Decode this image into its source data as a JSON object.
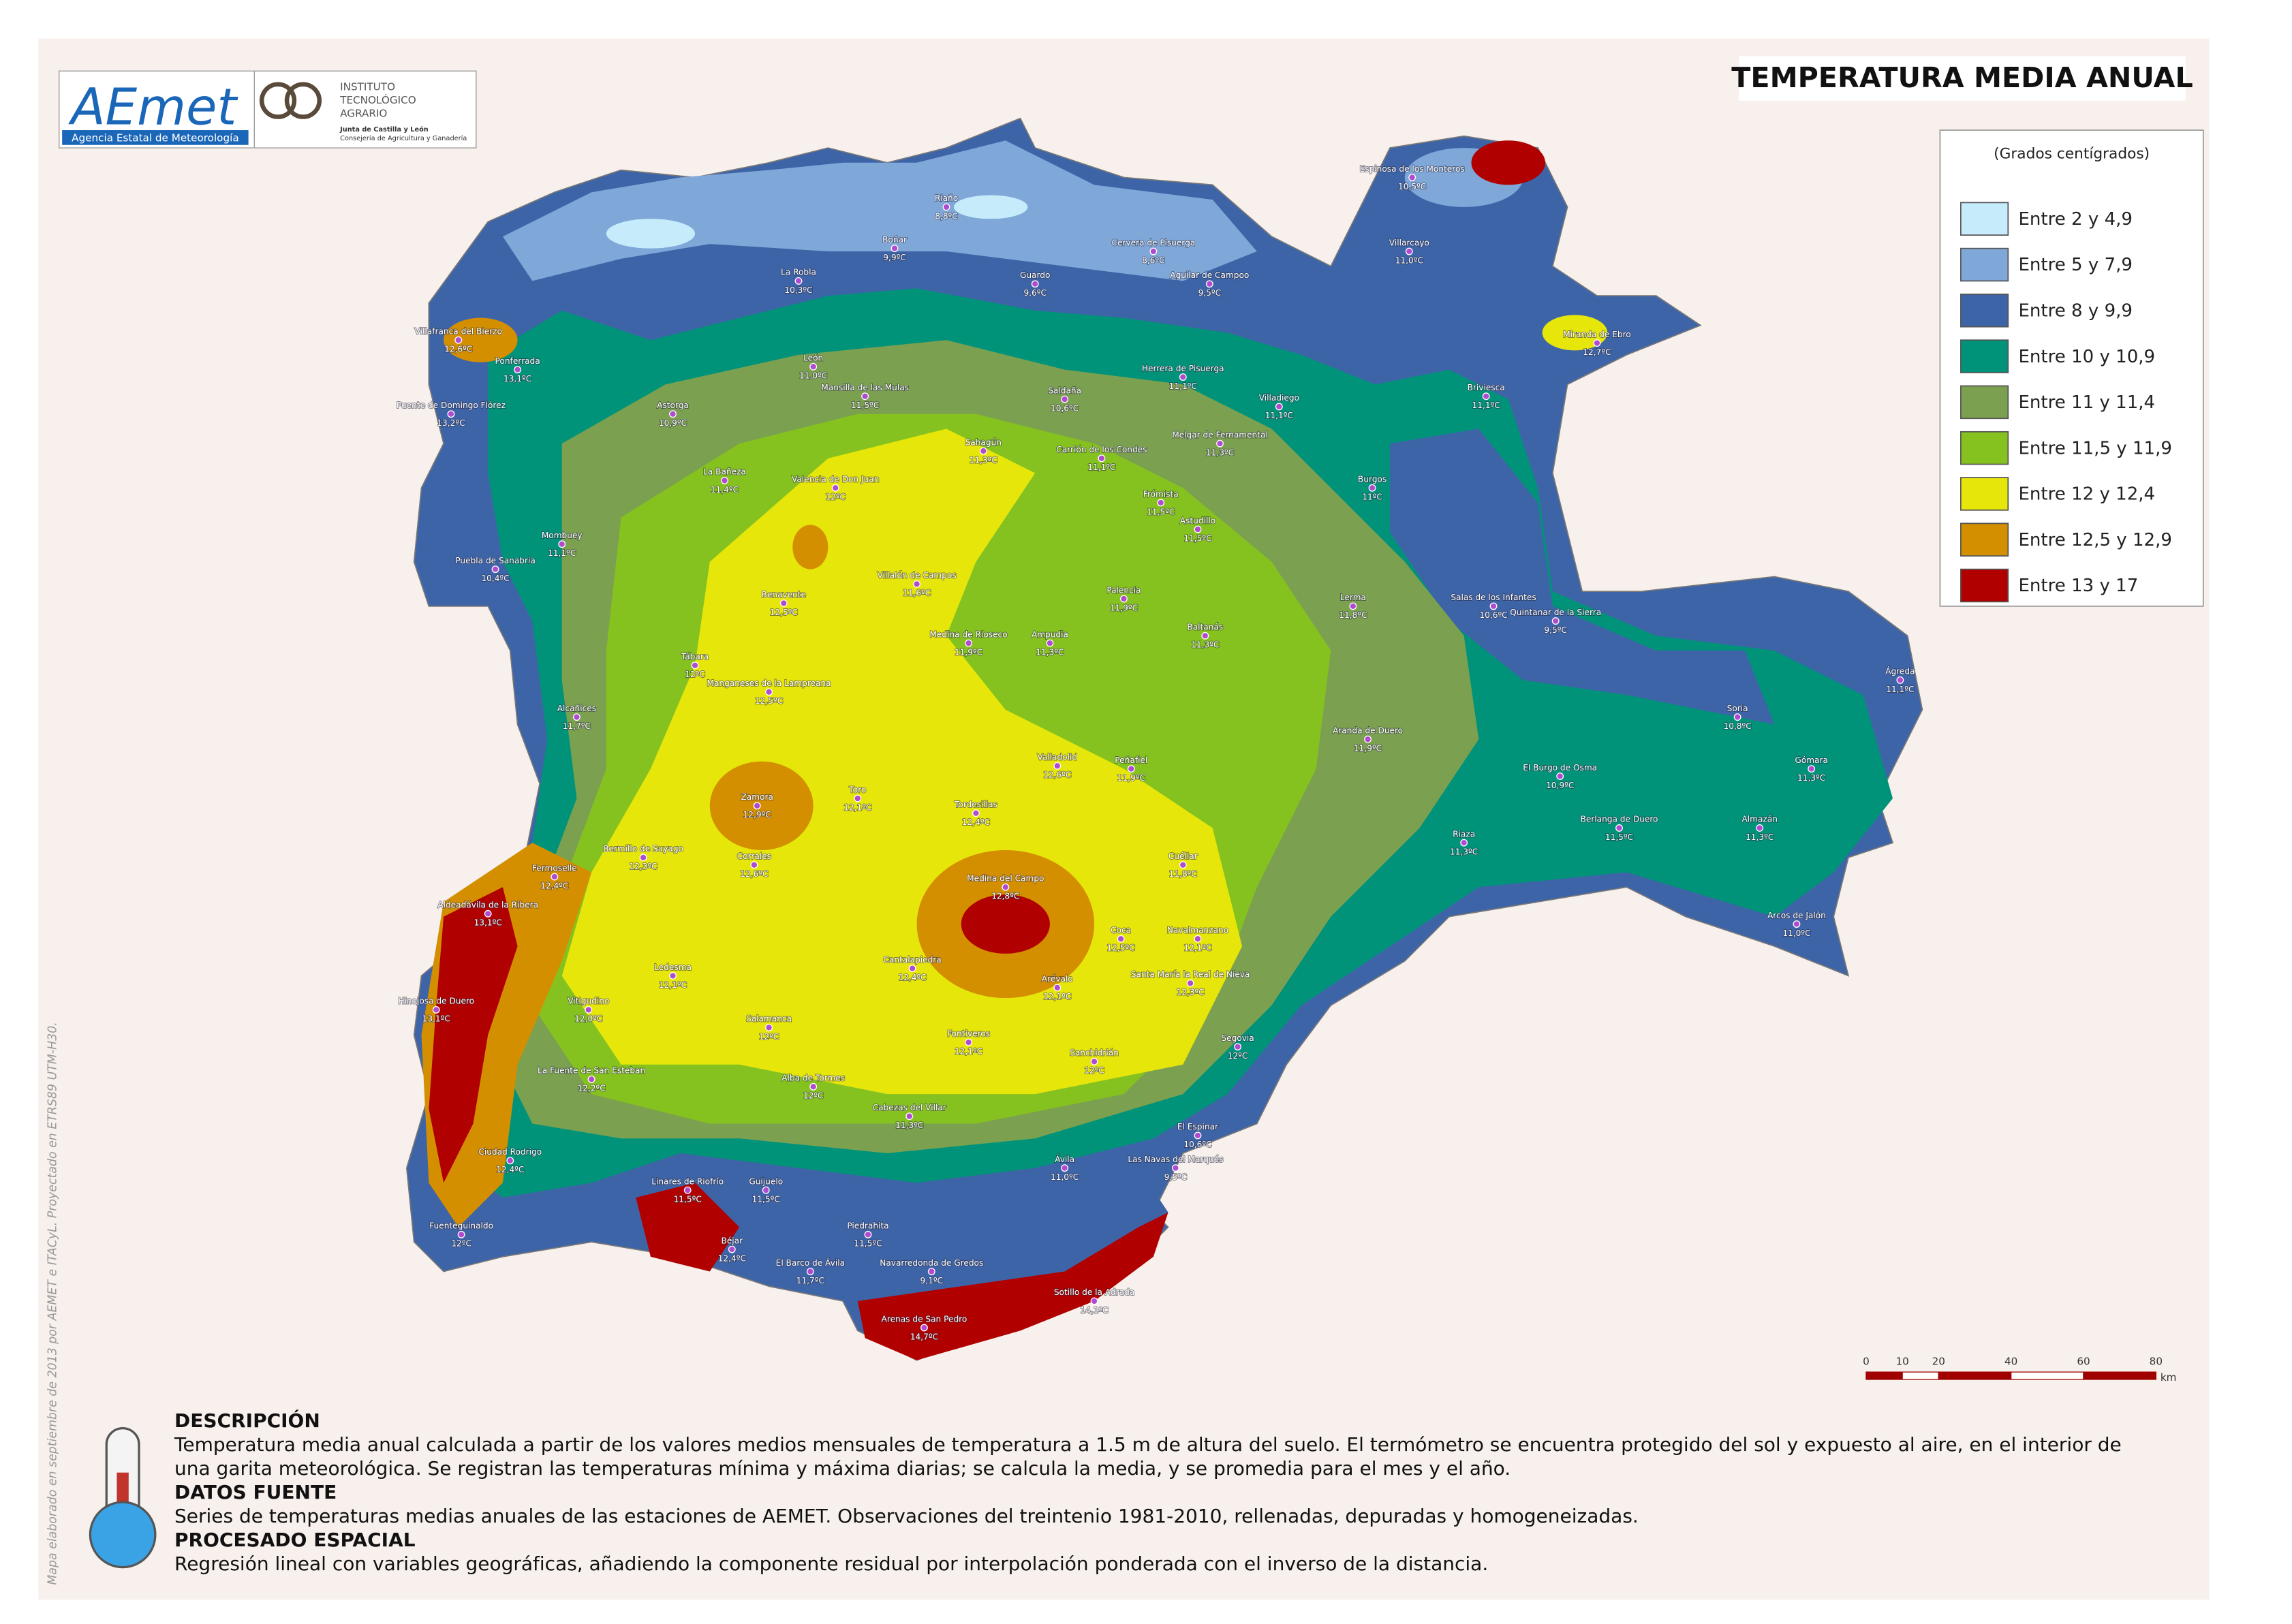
{
  "header": {
    "title": "TEMPERATURA MEDIA ANUAL",
    "logo_aemet": "AEmet",
    "logo_aemet_caption": "Agencia Estatal de Meteorología",
    "logo_itacyl_lines": [
      "INSTITUTO",
      "TECNOLÓGICO",
      "AGRARIO"
    ],
    "logo_itacyl_caption": "Junta de Castilla y León",
    "logo_itacyl_caption2": "Consejería de Agricultura y Ganadería"
  },
  "legend": {
    "title": "(Grados centígrados)",
    "items": [
      {
        "label": "Entre 2 y 4,9",
        "color": "#c6ecfb"
      },
      {
        "label": "Entre 5 y 7,9",
        "color": "#7fa7d8"
      },
      {
        "label": "Entre 8 y 9,9",
        "color": "#3e64a8"
      },
      {
        "label": "Entre 10 y 10,9",
        "color": "#00937a"
      },
      {
        "label": "Entre 11 y 11,4",
        "color": "#7ba050"
      },
      {
        "label": "Entre 11,5 y 11,9",
        "color": "#86c21f"
      },
      {
        "label": "Entre 12 y 12,4",
        "color": "#e6e60a"
      },
      {
        "label": "Entre 12,5 y 12,9",
        "color": "#d38f00"
      },
      {
        "label": "Entre 13 y 17",
        "color": "#b00000"
      }
    ]
  },
  "stations": [
    {
      "name": "Riaño",
      "temp": "8,8ºC"
    },
    {
      "name": "Boñar",
      "temp": "9,9ºC"
    },
    {
      "name": "Cervera de Pisuerga",
      "temp": "8,6ºC"
    },
    {
      "name": "Guardo",
      "temp": "9,6ºC"
    },
    {
      "name": "Aguilar de Campoo",
      "temp": "9,5ºC"
    },
    {
      "name": "La Robla",
      "temp": "10,3ºC"
    },
    {
      "name": "Villafranca del Bierzo",
      "temp": "12,6ºC"
    },
    {
      "name": "Ponferrada",
      "temp": "13,1ºC"
    },
    {
      "name": "Puente de Domingo Flórez",
      "temp": "13,2ºC"
    },
    {
      "name": "León",
      "temp": "11,0ºC"
    },
    {
      "name": "Mansilla de las Mulas",
      "temp": "11,5ºC"
    },
    {
      "name": "Sahagún",
      "temp": "11,3ºC"
    },
    {
      "name": "Saldaña",
      "temp": "10,6ºC"
    },
    {
      "name": "Herrera de Pisuerga",
      "temp": "11,1ºC"
    },
    {
      "name": "Villadiego",
      "temp": "11,1ºC"
    },
    {
      "name": "Melgar de Fernamental",
      "temp": "11,3ºC"
    },
    {
      "name": "Astorga",
      "temp": "10,9ºC"
    },
    {
      "name": "La Bañeza",
      "temp": "11,4ºC"
    },
    {
      "name": "Valencia de Don Juan",
      "temp": "12ºC"
    },
    {
      "name": "Carrión de los Condes",
      "temp": "11,1ºC"
    },
    {
      "name": "Frómista",
      "temp": "11,5ºC"
    },
    {
      "name": "Burgos",
      "temp": "11ºC"
    },
    {
      "name": "Astudillo",
      "temp": "11,5ºC"
    },
    {
      "name": "Villalón de Campos",
      "temp": "11,6ºC"
    },
    {
      "name": "Benavente",
      "temp": "12,5ºC"
    },
    {
      "name": "Puebla de Sanabria",
      "temp": "10,4ºC"
    },
    {
      "name": "Mombuey",
      "temp": "11,1ºC"
    },
    {
      "name": "Palencia",
      "temp": "11,9ºC"
    },
    {
      "name": "Baltanás",
      "temp": "11,3ºC"
    },
    {
      "name": "Lerma",
      "temp": "11,8ºC"
    },
    {
      "name": "Salas de los Infantes",
      "temp": "10,6ºC"
    },
    {
      "name": "Quintanar de la Sierra",
      "temp": "9,5ºC"
    },
    {
      "name": "Tábara",
      "temp": "12ºC"
    },
    {
      "name": "Manganeses de la Lampreana",
      "temp": "12,5ºC"
    },
    {
      "name": "Alcañices",
      "temp": "11,7ºC"
    },
    {
      "name": "Medina de Rioseco",
      "temp": "11,9ºC"
    },
    {
      "name": "Ampudia",
      "temp": "11,3ºC"
    },
    {
      "name": "Aranda de Duero",
      "temp": "11,9ºC"
    },
    {
      "name": "Valladolid",
      "temp": "12,6ºC"
    },
    {
      "name": "Peñafiel",
      "temp": "11,9ºC"
    },
    {
      "name": "Zamora",
      "temp": "12,9ºC"
    },
    {
      "name": "Toro",
      "temp": "12,1ºC"
    },
    {
      "name": "Tordesillas",
      "temp": "12,4ºC"
    },
    {
      "name": "Bermillo de Sayago",
      "temp": "12,3ºC"
    },
    {
      "name": "Corrales",
      "temp": "12,6ºC"
    },
    {
      "name": "Fermoselle",
      "temp": "12,4ºC"
    },
    {
      "name": "Medina del Campo",
      "temp": "12,8ºC"
    },
    {
      "name": "Cuéllar",
      "temp": "11,8ºC"
    },
    {
      "name": "Riaza",
      "temp": "11,3ºC"
    },
    {
      "name": "Soria",
      "temp": "10,8ºC"
    },
    {
      "name": "Almazán",
      "temp": "11,3ºC"
    },
    {
      "name": "El Burgo de Osma",
      "temp": "10,9ºC"
    },
    {
      "name": "Ágreda",
      "temp": "11,1ºC"
    },
    {
      "name": "Gómara",
      "temp": "11,3ºC"
    },
    {
      "name": "Arcos de Jalón",
      "temp": "11,0ºC"
    },
    {
      "name": "Berlanga de Duero",
      "temp": "11,5ºC"
    },
    {
      "name": "Coca",
      "temp": "12,5ºC"
    },
    {
      "name": "Navalmanzano",
      "temp": "12,1ºC"
    },
    {
      "name": "Santa María la Real de Nieva",
      "temp": "12,3ºC"
    },
    {
      "name": "Arévalo",
      "temp": "12,1ºC"
    },
    {
      "name": "Cantalapiedra",
      "temp": "12,4ºC"
    },
    {
      "name": "Ledesma",
      "temp": "12,1ºC"
    },
    {
      "name": "Vitigudino",
      "temp": "12,0ºC"
    },
    {
      "name": "Aldeadávila de la Ribera",
      "temp": "13,1ºC"
    },
    {
      "name": "Hinojosa de Duero",
      "temp": "13,1ºC"
    },
    {
      "name": "Salamanca",
      "temp": "12ºC"
    },
    {
      "name": "Fontiveros",
      "temp": "12,1ºC"
    },
    {
      "name": "Segovia",
      "temp": "12ºC"
    },
    {
      "name": "Sanchidrián",
      "temp": "12ºC"
    },
    {
      "name": "La Fuente de San Esteban",
      "temp": "12,2ºC"
    },
    {
      "name": "Alba de Tormes",
      "temp": "12ºC"
    },
    {
      "name": "Cabezas del Villar",
      "temp": "11,3ºC"
    },
    {
      "name": "Ávila",
      "temp": "11,0ºC"
    },
    {
      "name": "Ciudad Rodrigo",
      "temp": "12,4ºC"
    },
    {
      "name": "Linares de Riofrío",
      "temp": "11,5ºC"
    },
    {
      "name": "Guijuelo",
      "temp": "11,5ºC"
    },
    {
      "name": "Piedrahita",
      "temp": "11,5ºC"
    },
    {
      "name": "Navarredonda de Gredos",
      "temp": "9,1ºC"
    },
    {
      "name": "El Barco de Ávila",
      "temp": "11,7ºC"
    },
    {
      "name": "Fuenteguinaldo",
      "temp": "12ºC"
    },
    {
      "name": "Béjar",
      "temp": "12,4ºC"
    },
    {
      "name": "Arenas de San Pedro",
      "temp": "14,7ºC"
    },
    {
      "name": "Sotillo de la Adrada",
      "temp": "14,1ºC"
    },
    {
      "name": "Las Navas del Marqués",
      "temp": "9,5ºC"
    },
    {
      "name": "El Espinar",
      "temp": "10,6ºC"
    },
    {
      "name": "Miranda de Ebro",
      "temp": "12,7ºC"
    },
    {
      "name": "Espinosa de los Monteros",
      "temp": "10,5ºC"
    },
    {
      "name": "Villarcayo",
      "temp": "11,0ºC"
    },
    {
      "name": "Briviesca",
      "temp": "11,1ºC"
    }
  ],
  "scale_bar": {
    "ticks": [
      0,
      10,
      20,
      40,
      60,
      80
    ],
    "unit": "km"
  },
  "description": [
    {
      "heading": "DESCRIPCIÓN",
      "text": "Temperatura media anual calculada a partir de los valores medios mensuales de temperatura a 1.5 m de altura del suelo. El termómetro se encuentra protegido del sol y expuesto al aire, en el interior de una garita meteorológica. Se registran las temperaturas mínima y máxima diarias; se calcula la media, y se promedia para el mes y el año."
    },
    {
      "heading": "DATOS FUENTE",
      "text": "Series de temperaturas medias anuales de las estaciones de AEMET. Observaciones del treintenio 1981-2010, rellenadas, depuradas y homogeneizadas."
    },
    {
      "heading": "PROCESADO ESPACIAL",
      "text": "Regresión lineal con variables geográficas, añadiendo la componente residual por interpolación ponderada con el inverso de la distancia."
    }
  ],
  "credit": "Mapa elaborado en septiembre de 2013 por AEMET e ITACyL.  Proyectado en ETRS89 UTM-H30."
}
